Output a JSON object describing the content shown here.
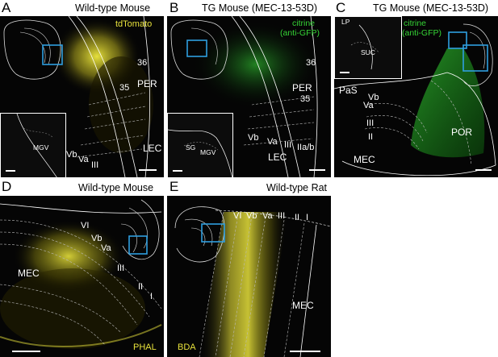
{
  "panels": {
    "A": {
      "letter": "A",
      "title": "Wild-type Mouse",
      "label": "tdTomato",
      "regions": [
        "36",
        "35",
        "PER",
        "LEC",
        "MGV"
      ],
      "layers": [
        "Vb",
        "Va",
        "III"
      ]
    },
    "B": {
      "letter": "B",
      "title": "TG Mouse (MEC-13-53D)",
      "label_line1": "citrine",
      "label_line2": "(anti-GFP)",
      "regions": [
        "36",
        "PER",
        "35",
        "LEC",
        "SG",
        "MGV"
      ],
      "layers": [
        "Vb",
        "Va",
        "III",
        "IIa/b"
      ]
    },
    "C": {
      "letter": "C",
      "title": "TG Mouse (MEC-13-53D)",
      "label_line1": "citrine",
      "label_line2": "(anti-GFP)",
      "regions": [
        "LP",
        "SUC",
        "PaS",
        "POR",
        "MEC"
      ],
      "layers": [
        "Vb",
        "Va",
        "III",
        "II"
      ]
    },
    "D": {
      "letter": "D",
      "title": "Wild-type Mouse",
      "label": "PHAL",
      "regions": [
        "MEC"
      ],
      "layers": [
        "VI",
        "Vb",
        "Va",
        "III",
        "II",
        "I"
      ]
    },
    "E": {
      "letter": "E",
      "title": "Wild-type Rat",
      "label": "BDA",
      "regions": [
        "MEC"
      ],
      "layers": [
        "VI",
        "Vb",
        "Va",
        "III",
        "II",
        "I"
      ]
    }
  },
  "colors": {
    "background": "#050505",
    "tdtomato_signal": "#e8e23c",
    "citrine_signal": "#35d435",
    "box_highlight": "#2f9fe0",
    "outline": "#ffffff"
  }
}
